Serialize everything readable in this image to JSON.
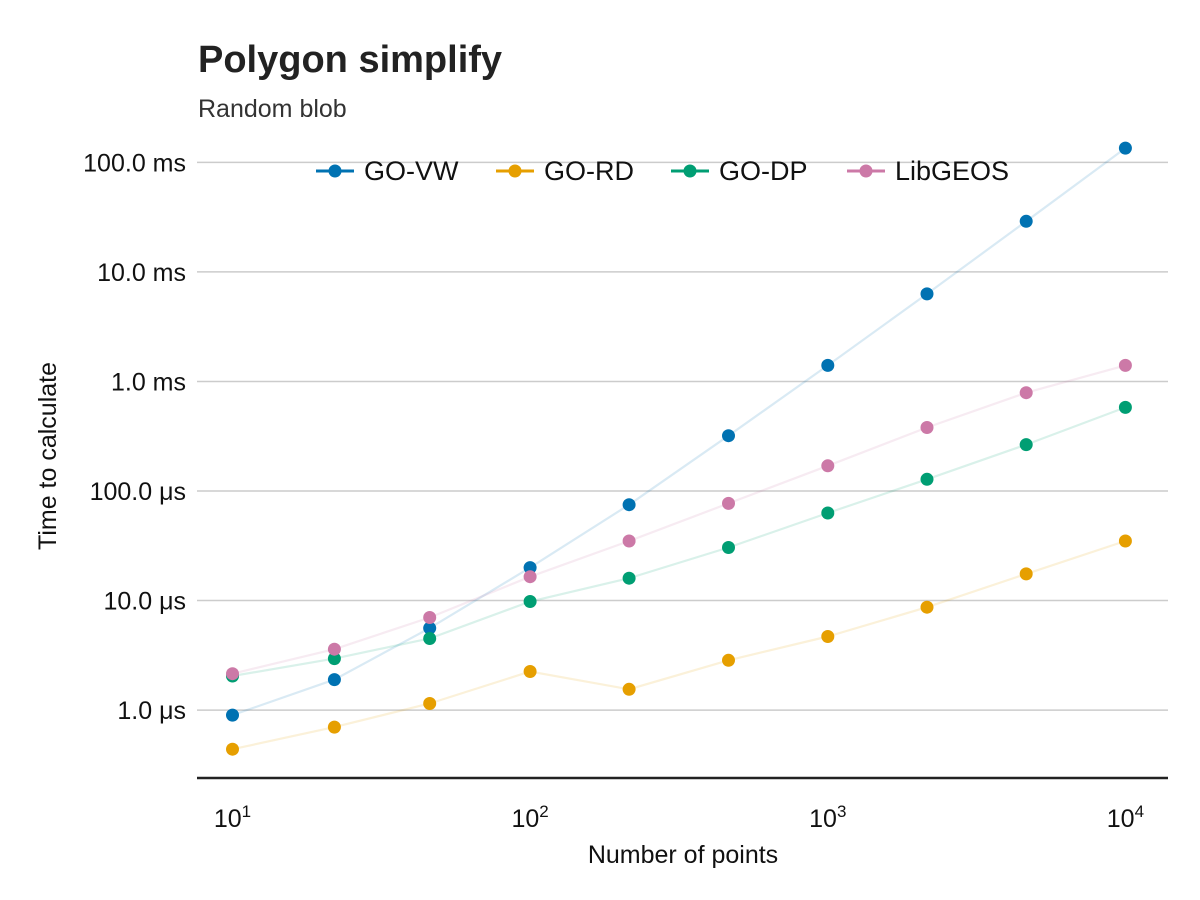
{
  "chart_data": {
    "type": "scatter",
    "title": "Polygon simplify",
    "subtitle": "Random blob",
    "xlabel": "Number of points",
    "ylabel": "Time to calculate",
    "x_scale": "log",
    "y_scale": "log",
    "xlim": [
      7.6,
      13900
    ],
    "ylim_seconds": [
      2.4e-07,
      0.16
    ],
    "grid": true,
    "legend_position": "top",
    "x_ticks": [
      {
        "value": 10,
        "base": "10",
        "exp": "1"
      },
      {
        "value": 100,
        "base": "10",
        "exp": "2"
      },
      {
        "value": 1000,
        "base": "10",
        "exp": "3"
      },
      {
        "value": 10000,
        "base": "10",
        "exp": "4"
      }
    ],
    "y_ticks": [
      {
        "value": 1e-06,
        "label": "1.0 μs"
      },
      {
        "value": 1e-05,
        "label": "10.0 μs"
      },
      {
        "value": 0.0001,
        "label": "100.0 μs"
      },
      {
        "value": 0.001,
        "label": "1.0 ms"
      },
      {
        "value": 0.01,
        "label": "10.0 ms"
      },
      {
        "value": 0.1,
        "label": "100.0 ms"
      }
    ],
    "x": [
      10,
      22,
      46,
      100,
      215,
      464,
      1000,
      2154,
      4642,
      10000
    ],
    "series": [
      {
        "name": "GO-VW",
        "color": "#0072b2",
        "values": [
          9e-07,
          1.9e-06,
          5.6e-06,
          2e-05,
          7.5e-05,
          0.00032,
          0.0014,
          0.0063,
          0.029,
          0.135
        ]
      },
      {
        "name": "GO-RD",
        "color": "#e69f00",
        "values": [
          4.4e-07,
          7e-07,
          1.15e-06,
          2.25e-06,
          1.55e-06,
          2.85e-06,
          4.7e-06,
          8.7e-06,
          1.75e-05,
          3.5e-05
        ]
      },
      {
        "name": "GO-DP",
        "color": "#009e73",
        "values": [
          2.05e-06,
          2.95e-06,
          4.5e-06,
          9.8e-06,
          1.6e-05,
          3.05e-05,
          6.3e-05,
          0.000128,
          0.000265,
          0.00058
        ]
      },
      {
        "name": "LibGEOS",
        "color": "#cc79a7",
        "values": [
          2.15e-06,
          3.6e-06,
          7e-06,
          1.65e-05,
          3.5e-05,
          7.7e-05,
          0.00017,
          0.00038,
          0.00079,
          0.0014
        ]
      }
    ]
  }
}
